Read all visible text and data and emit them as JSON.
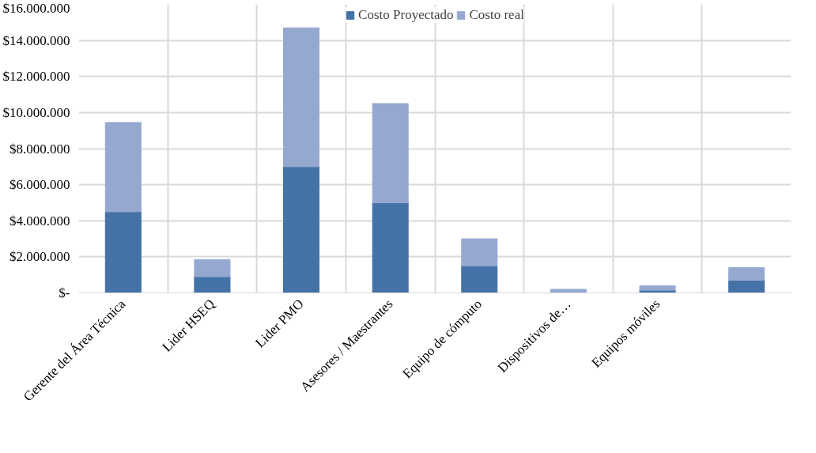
{
  "chart_data": {
    "type": "bar",
    "stacked": true,
    "categories": [
      "Gerente del Área Técnica",
      "Lider HSEQ",
      "Lider PMO",
      "Asesores / Maestrantes",
      "Equipo de cómputo",
      "Dispositivos de…",
      "Equipos móviles",
      null
    ],
    "series": [
      {
        "name": "Costo Proyectado",
        "color": "#4472a6",
        "values": [
          4500000,
          900000,
          7000000,
          5000000,
          1500000,
          null,
          150000,
          700000
        ]
      },
      {
        "name": "Costo real",
        "color": "#95a9d0",
        "values": [
          4950000,
          950000,
          7700000,
          5500000,
          1500000,
          200000,
          250000,
          700000
        ]
      }
    ],
    "ylim": [
      0,
      16000000
    ],
    "yticks": [
      {
        "value": 0,
        "label": "$-"
      },
      {
        "value": 2000000,
        "label": "$2.000.000"
      },
      {
        "value": 4000000,
        "label": "$4.000.000"
      },
      {
        "value": 6000000,
        "label": "$6.000.000"
      },
      {
        "value": 8000000,
        "label": "$8.000.000"
      },
      {
        "value": 10000000,
        "label": "$10.000.000"
      },
      {
        "value": 12000000,
        "label": "$12.000.000"
      },
      {
        "value": 14000000,
        "label": "$14.000.000"
      },
      {
        "value": 16000000,
        "label": "$16.000.000"
      }
    ],
    "grid": true,
    "legend": "top"
  }
}
